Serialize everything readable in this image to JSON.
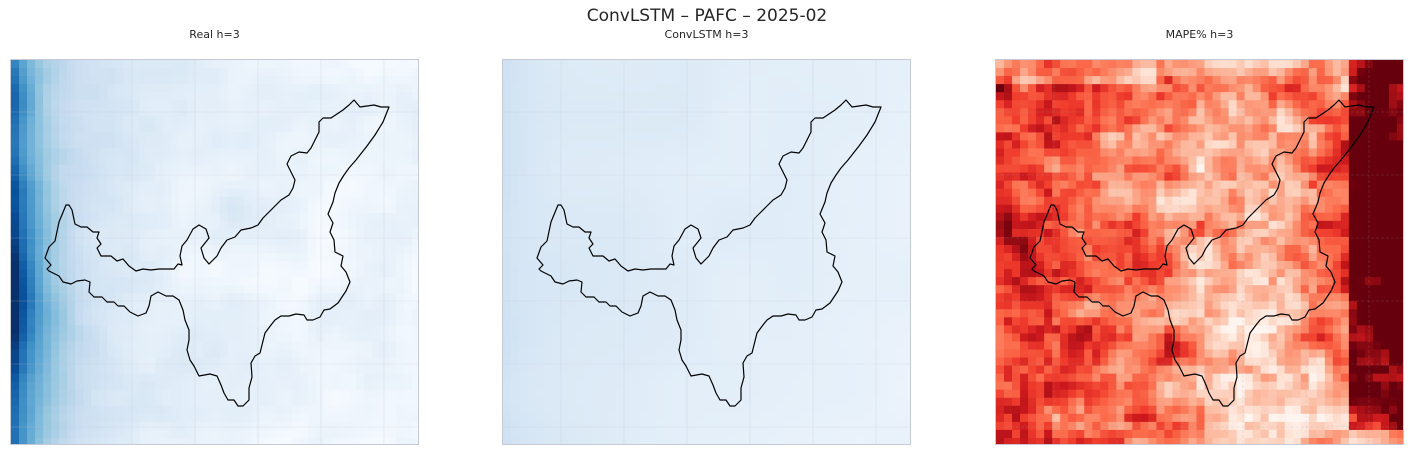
{
  "figure": {
    "title": "ConvLSTM – PAFC – 2025-02"
  },
  "colors": {
    "real_cmap": "Blues",
    "pred_cmap": "Blues",
    "error_cmap": "Reds",
    "boundary": "#000000",
    "frame": "#c5cad4",
    "grid": "#d9dee8"
  },
  "chart_data": [
    {
      "type": "heatmap",
      "title": "Real h=3",
      "colormap": "Blues",
      "grid": true,
      "axes_ticks": false,
      "overlay": "region-boundary-outline",
      "pattern": "high values along left edge, low values on right side"
    },
    {
      "type": "heatmap",
      "title": "ConvLSTM h=3",
      "colormap": "Blues",
      "grid": true,
      "axes_ticks": false,
      "overlay": "region-boundary-outline",
      "pattern": "near-uniform light blue, slightly darker on left edge"
    },
    {
      "type": "heatmap",
      "title": "MAPE% h=3",
      "colormap": "Reds",
      "grid": true,
      "axes_ticks": false,
      "overlay": "region-boundary-outline",
      "pattern": "high error on left and right edges, low error in center"
    }
  ]
}
